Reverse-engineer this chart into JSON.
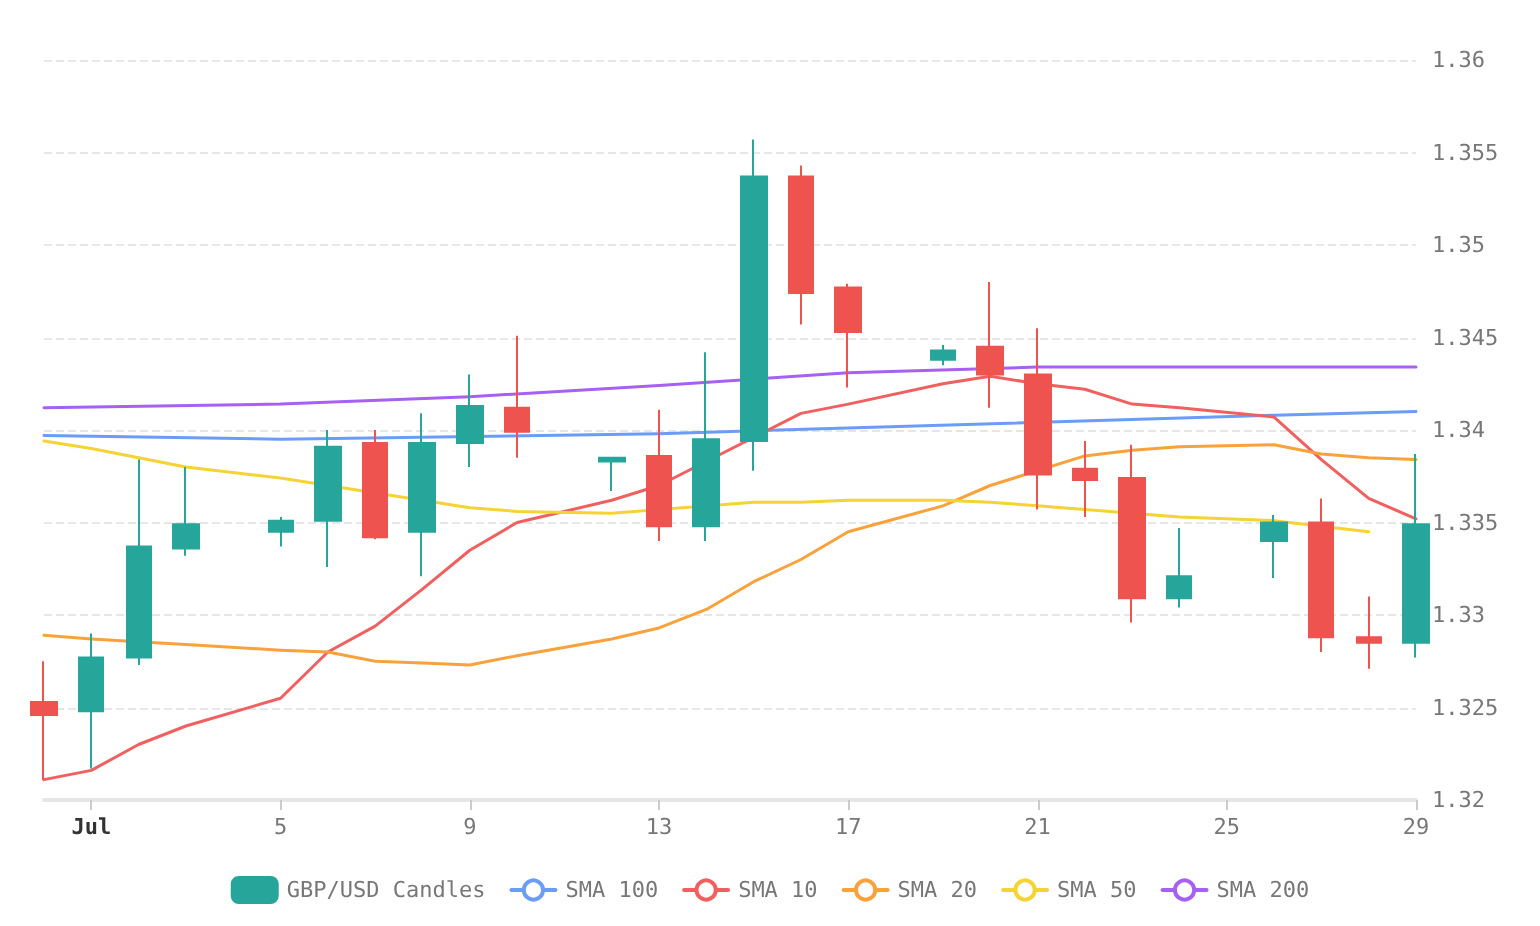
{
  "chart_data": {
    "type": "candlestick",
    "xlim": [
      "--06-30",
      "--07-29"
    ],
    "xticks": [
      {
        "value": "--07-01",
        "label": "Jul"
      },
      {
        "value": "--07-05",
        "label": "5"
      },
      {
        "value": "--07-09",
        "label": "9"
      },
      {
        "value": "--07-13",
        "label": "13"
      },
      {
        "value": "--07-17",
        "label": "17"
      },
      {
        "value": "--07-21",
        "label": "21"
      },
      {
        "value": "--07-25",
        "label": "25"
      },
      {
        "value": "--07-29",
        "label": "29"
      }
    ],
    "ylim": [
      1.32,
      1.36
    ],
    "yticks": [
      1.32,
      1.325,
      1.33,
      1.335,
      1.34,
      1.345,
      1.35,
      1.355,
      1.36
    ],
    "grid": "y",
    "legend": "bottom",
    "series": [
      {
        "name": "GBP/USD Candles",
        "color": "#26a69a",
        "x": [
          "--06-30",
          "--07-01",
          "--07-02",
          "--07-03",
          "--07-05",
          "--07-06",
          "--07-07",
          "--07-08",
          "--07-09",
          "--07-10",
          "--07-12",
          "--07-13",
          "--07-14",
          "--07-15",
          "--07-16",
          "--07-17",
          "--07-19",
          "--07-20",
          "--07-21",
          "--07-22",
          "--07-23",
          "--07-24",
          "--07-26",
          "--07-27",
          "--07-28",
          "--07-29"
        ],
        "colors": [
          "#ef5350",
          "#26a69a",
          "#26a69a",
          "#26a69a",
          "#26a69a",
          "#26a69a",
          "#ef5350",
          "#26a69a",
          "#26a69a",
          "#ef5350",
          "#26a69a",
          "#ef5350",
          "#26a69a",
          "#26a69a",
          "#ef5350",
          "#ef5350",
          "#26a69a",
          "#ef5350",
          "#ef5350",
          "#ef5350",
          "#ef5350",
          "#26a69a",
          "#26a69a",
          "#ef5350",
          "#ef5350",
          "#26a69a"
        ],
        "ohlc": [
          [
            1.3253,
            1.3275,
            1.3211,
            1.3246
          ],
          [
            1.3248,
            1.329,
            1.3217,
            1.3277
          ],
          [
            1.3277,
            1.3384,
            1.3273,
            1.3337
          ],
          [
            1.3336,
            1.338,
            1.3332,
            1.3349
          ],
          [
            1.3345,
            1.3353,
            1.3337,
            1.3351
          ],
          [
            1.3351,
            1.34,
            1.3326,
            1.3391
          ],
          [
            1.3393,
            1.34,
            1.3341,
            1.3342
          ],
          [
            1.3345,
            1.3409,
            1.3321,
            1.3393
          ],
          [
            1.3393,
            1.343,
            1.338,
            1.3413
          ],
          [
            1.3412,
            1.3451,
            1.3385,
            1.3399
          ],
          [
            1.3383,
            1.3385,
            1.3367,
            1.3385
          ],
          [
            1.3386,
            1.3411,
            1.334,
            1.3348
          ],
          [
            1.3348,
            1.3442,
            1.334,
            1.3395
          ],
          [
            1.3394,
            1.3557,
            1.3378,
            1.3537
          ],
          [
            1.3537,
            1.3543,
            1.3457,
            1.3474
          ],
          [
            1.3477,
            1.3479,
            1.3423,
            1.3453
          ],
          [
            1.3438,
            1.3446,
            1.3435,
            1.3443
          ],
          [
            1.3445,
            1.348,
            1.3412,
            1.343
          ],
          [
            1.343,
            1.3455,
            1.3357,
            1.3376
          ],
          [
            1.3379,
            1.3394,
            1.3353,
            1.3373
          ],
          [
            1.3374,
            1.3392,
            1.3296,
            1.3309
          ],
          [
            1.3309,
            1.3347,
            1.3304,
            1.3321
          ],
          [
            1.334,
            1.3354,
            1.332,
            1.335
          ],
          [
            1.335,
            1.3363,
            1.328,
            1.3288
          ],
          [
            1.3288,
            1.331,
            1.3271,
            1.3285
          ],
          [
            1.3285,
            1.3387,
            1.3277,
            1.3349
          ]
        ]
      },
      {
        "name": "SMA 100",
        "type": "line",
        "color": "#6b9cf7",
        "marker": "none",
        "x": [
          "--06-30",
          "--07-05",
          "--07-09",
          "--07-13",
          "--07-15",
          "--07-21",
          "--07-26",
          "--07-29"
        ],
        "values": [
          1.3397,
          1.3395,
          null,
          1.3398,
          null,
          null,
          1.3408,
          1.341
        ]
      },
      {
        "name": "SMA 10",
        "type": "line",
        "color": "#f06060",
        "marker": "none",
        "x": [
          "--06-30",
          "--07-01",
          "--07-02",
          "--07-03",
          "--07-05",
          "--07-06",
          "--07-07",
          "--07-08",
          "--07-09",
          "--07-10",
          "--07-12",
          "--07-13",
          "--07-14",
          "--07-15",
          "--07-16",
          "--07-17",
          "--07-19",
          "--07-20",
          "--07-21",
          "--07-22",
          "--07-23",
          "--07-24",
          "--07-26",
          "--07-27",
          "--07-28",
          "--07-29"
        ],
        "values": [
          1.3211,
          1.3216,
          1.323,
          1.324,
          1.3255,
          1.328,
          1.3294,
          1.3314,
          1.3335,
          1.335,
          1.3362,
          1.337,
          null,
          null,
          1.3409,
          1.3414,
          1.3425,
          1.3429,
          1.3425,
          1.3422,
          1.3414,
          1.3412,
          1.3407,
          1.3384,
          1.3363,
          1.3352
        ]
      },
      {
        "name": "SMA 20",
        "type": "line",
        "color": "#f9a23c",
        "marker": "none",
        "x": [
          "--06-30",
          "--07-01",
          "--07-02",
          "--07-03",
          "--07-05",
          "--07-06",
          "--07-07",
          "--07-08",
          "--07-09",
          "--07-10",
          "--07-12",
          "--07-13",
          "--07-14",
          "--07-15",
          "--07-16",
          "--07-17",
          "--07-19",
          "--07-20",
          "--07-21",
          "--07-22",
          "--07-23",
          "--07-24",
          "--07-26",
          "--07-27",
          "--07-28",
          "--07-29"
        ],
        "values": [
          1.3289,
          1.3287,
          null,
          1.3284,
          1.3281,
          1.328,
          1.3275,
          1.3274,
          1.3273,
          1.3278,
          1.3287,
          1.3293,
          1.3303,
          1.3318,
          1.333,
          1.3345,
          1.3359,
          1.337,
          null,
          1.3386,
          1.3389,
          1.3391,
          1.3392,
          1.3387,
          1.3385,
          1.3384
        ]
      },
      {
        "name": "SMA 50",
        "type": "line",
        "color": "#f5d334",
        "marker": "none",
        "x": [
          "--06-30",
          "--07-01",
          "--07-02",
          "--07-03",
          "--07-05",
          "--07-06",
          "--07-07",
          "--07-08",
          "--07-09",
          "--07-10",
          "--07-12",
          "--07-13",
          "--07-14",
          "--07-15",
          "--07-16",
          "--07-17",
          "--07-19",
          "--07-20",
          "--07-21",
          "--07-22",
          "--07-23",
          "--07-24",
          "--07-26",
          "--07-27",
          "--07-28"
        ],
        "values": [
          1.3394,
          1.339,
          1.3385,
          1.338,
          1.3374,
          null,
          null,
          null,
          1.3358,
          1.3356,
          1.3355,
          null,
          null,
          1.3361,
          1.3361,
          1.3362,
          1.3362,
          1.3361,
          1.3359,
          1.3357,
          null,
          1.3353,
          1.3351,
          null,
          1.3345
        ]
      },
      {
        "name": "SMA 200",
        "type": "line",
        "color": "#a661f2",
        "marker": "none",
        "x": [
          "--06-30",
          "--07-05",
          "--07-09",
          "--07-13",
          "--07-15",
          "--07-17",
          "--07-21",
          "--07-26",
          "--07-29"
        ],
        "values": [
          1.3412,
          1.3414,
          1.3418,
          1.3424,
          null,
          1.3431,
          1.3434,
          1.3434,
          1.3434
        ]
      }
    ]
  }
}
